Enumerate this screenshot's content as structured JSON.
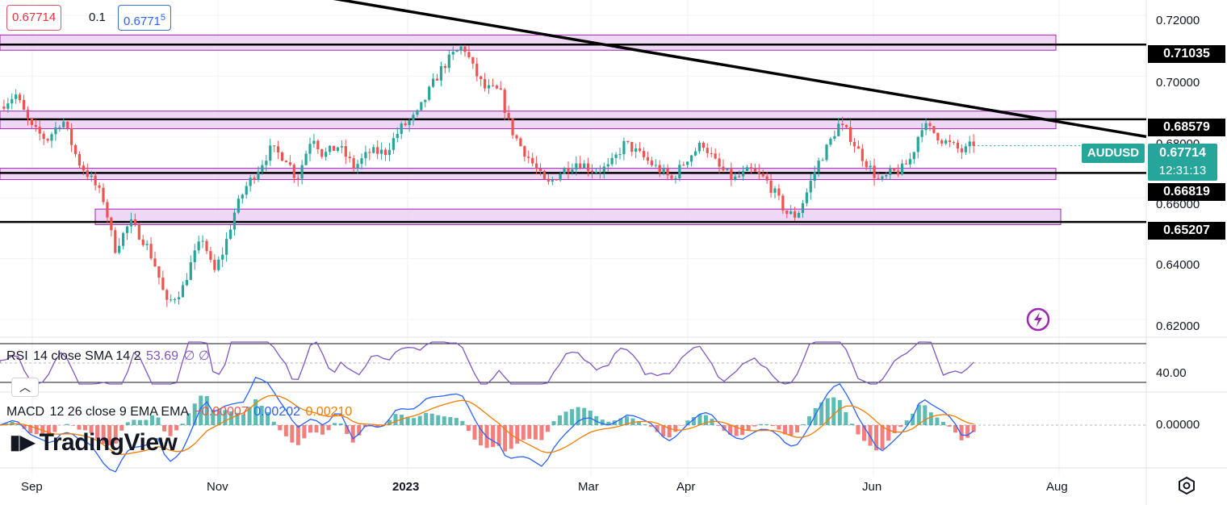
{
  "quote": {
    "bid": "0.67714",
    "spread": "0.1",
    "ask_main": "0.6771",
    "ask_frac": "5"
  },
  "symbol": "AUDUSD",
  "last_price": "0.67714",
  "countdown": "12:31:13",
  "price_axis": [
    "0.72000",
    "0.70000",
    "0.68000",
    "0.66000",
    "0.64000",
    "0.62000"
  ],
  "levels": [
    "0.71035",
    "0.68579",
    "0.66819",
    "0.65207"
  ],
  "time_axis": [
    "Sep",
    "Nov",
    "2023",
    "Mar",
    "Apr",
    "Jun",
    "Aug"
  ],
  "rsi": {
    "name": "RSI",
    "params": "14 close SMA 14 2",
    "value": "53.69",
    "hidden": "∅ ∅",
    "axis_label": "40.00"
  },
  "macd": {
    "name": "MACD",
    "params": "12 26 close 9 EMA EMA",
    "hist": "−0.00007",
    "macd": "0.00202",
    "signal": "0.00210",
    "axis_label": "0.00000"
  },
  "brand": "TradingView",
  "icons": {
    "settings": "gear-icon",
    "replay": "lightning-icon",
    "collapse": "chevron-up-icon"
  },
  "colors": {
    "up": "#26a69a",
    "down": "#ef5350",
    "zone_fill": "#ecd0f4",
    "zone_border": "#9c27b0",
    "rsi_line": "#7e57c2",
    "macd_line": "#2962ff",
    "signal_line": "#f57c00"
  },
  "chart_data": {
    "type": "candlestick",
    "instrument": "AUDUSD",
    "ylim": [
      0.615,
      0.725
    ],
    "support_resistance_levels": [
      0.71035,
      0.68579,
      0.66819,
      0.65207
    ],
    "zones": [
      [
        0.7085,
        0.7135
      ],
      [
        0.6827,
        0.6885
      ],
      [
        0.666,
        0.6697
      ],
      [
        0.6512,
        0.6563
      ]
    ],
    "trendline": [
      {
        "x": 0,
        "y": 0.7283
      },
      {
        "x": 1,
        "y": 0.6801
      }
    ],
    "path": [
      [
        0.0,
        0.69
      ],
      [
        0.015,
        0.694
      ],
      [
        0.03,
        0.683
      ],
      [
        0.045,
        0.679
      ],
      [
        0.06,
        0.686
      ],
      [
        0.075,
        0.672
      ],
      [
        0.09,
        0.665
      ],
      [
        0.1,
        0.659
      ],
      [
        0.11,
        0.643
      ],
      [
        0.125,
        0.652
      ],
      [
        0.14,
        0.645
      ],
      [
        0.15,
        0.637
      ],
      [
        0.16,
        0.625
      ],
      [
        0.175,
        0.63
      ],
      [
        0.185,
        0.64
      ],
      [
        0.195,
        0.647
      ],
      [
        0.205,
        0.635
      ],
      [
        0.215,
        0.643
      ],
      [
        0.225,
        0.655
      ],
      [
        0.235,
        0.663
      ],
      [
        0.245,
        0.668
      ],
      [
        0.26,
        0.676
      ],
      [
        0.275,
        0.673
      ],
      [
        0.285,
        0.666
      ],
      [
        0.3,
        0.681
      ],
      [
        0.31,
        0.674
      ],
      [
        0.325,
        0.677
      ],
      [
        0.34,
        0.67
      ],
      [
        0.355,
        0.675
      ],
      [
        0.37,
        0.675
      ],
      [
        0.385,
        0.683
      ],
      [
        0.4,
        0.687
      ],
      [
        0.415,
        0.697
      ],
      [
        0.425,
        0.703
      ],
      [
        0.435,
        0.707
      ],
      [
        0.445,
        0.71
      ],
      [
        0.455,
        0.702
      ],
      [
        0.465,
        0.696
      ],
      [
        0.48,
        0.695
      ],
      [
        0.49,
        0.683
      ],
      [
        0.5,
        0.677
      ],
      [
        0.51,
        0.672
      ],
      [
        0.525,
        0.664
      ],
      [
        0.54,
        0.669
      ],
      [
        0.555,
        0.672
      ],
      [
        0.57,
        0.669
      ],
      [
        0.585,
        0.67
      ],
      [
        0.6,
        0.678
      ],
      [
        0.615,
        0.674
      ],
      [
        0.63,
        0.67
      ],
      [
        0.645,
        0.666
      ],
      [
        0.66,
        0.673
      ],
      [
        0.675,
        0.678
      ],
      [
        0.69,
        0.67
      ],
      [
        0.705,
        0.666
      ],
      [
        0.72,
        0.669
      ],
      [
        0.735,
        0.666
      ],
      [
        0.745,
        0.661
      ],
      [
        0.755,
        0.655
      ],
      [
        0.765,
        0.654
      ],
      [
        0.775,
        0.662
      ],
      [
        0.785,
        0.671
      ],
      [
        0.795,
        0.677
      ],
      [
        0.805,
        0.684
      ],
      [
        0.815,
        0.681
      ],
      [
        0.825,
        0.675
      ],
      [
        0.835,
        0.67
      ],
      [
        0.845,
        0.665
      ],
      [
        0.855,
        0.668
      ],
      [
        0.865,
        0.669
      ],
      [
        0.875,
        0.673
      ],
      [
        0.885,
        0.684
      ],
      [
        0.895,
        0.682
      ],
      [
        0.905,
        0.679
      ],
      [
        0.915,
        0.677
      ],
      [
        0.925,
        0.675
      ],
      [
        0.935,
        0.678
      ]
    ]
  }
}
